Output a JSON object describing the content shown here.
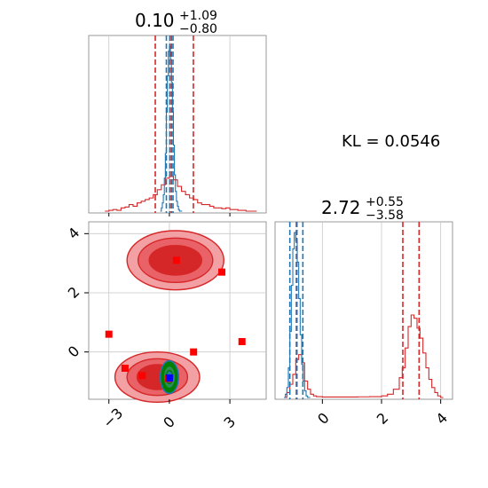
{
  "annotation": {
    "text": "KL = 0.0546"
  },
  "colors": {
    "red": "#d62728",
    "blue": "#1f77b4",
    "red_fill_light": "#f2a0a3",
    "red_fill_dark": "#d62728",
    "marker_red": "#ff0000",
    "marker_blue": "#0000ff",
    "green": "#008000",
    "grid": "#c8c8c8"
  },
  "chart_data": [
    {
      "type": "histogram",
      "panel": "top-left",
      "title": {
        "main": "0.10",
        "sup": "+1.09",
        "sub": "−0.80"
      },
      "xlim": [
        -4.0,
        4.8
      ],
      "xticks": [
        -3,
        0,
        3
      ],
      "xticklabels_shown": false,
      "grid": true,
      "vlines": [
        {
          "x": -0.7,
          "color": "red",
          "style": "dashed"
        },
        {
          "x": 0.1,
          "color": "red",
          "style": "dashed"
        },
        {
          "x": 1.19,
          "color": "red",
          "style": "dashed"
        },
        {
          "x": -0.15,
          "color": "blue",
          "style": "dashed"
        },
        {
          "x": 0.02,
          "color": "blue",
          "style": "dashed"
        },
        {
          "x": 0.18,
          "color": "blue",
          "style": "dashed"
        }
      ],
      "series": [
        {
          "color": "red",
          "x": [
            -3.2,
            -3.0,
            -2.8,
            -2.6,
            -2.4,
            -2.2,
            -2.0,
            -1.8,
            -1.6,
            -1.4,
            -1.2,
            -1.0,
            -0.8,
            -0.6,
            -0.4,
            -0.2,
            0.0,
            0.2,
            0.4,
            0.6,
            0.8,
            1.0,
            1.2,
            1.4,
            1.6,
            1.8,
            2.0,
            2.2,
            2.4,
            2.6,
            2.8,
            3.0,
            3.2,
            3.4,
            3.6,
            3.8,
            4.0,
            4.2
          ],
          "values": [
            0.0,
            0.005,
            0.01,
            0.005,
            0.02,
            0.025,
            0.04,
            0.03,
            0.05,
            0.06,
            0.07,
            0.08,
            0.1,
            0.13,
            0.16,
            0.2,
            0.21,
            0.19,
            0.15,
            0.12,
            0.1,
            0.08,
            0.07,
            0.05,
            0.04,
            0.04,
            0.03,
            0.02,
            0.02,
            0.015,
            0.02,
            0.01,
            0.01,
            0.005,
            0.005,
            0.0,
            0.0,
            0.0
          ]
        },
        {
          "color": "blue",
          "x": [
            -0.45,
            -0.4,
            -0.35,
            -0.3,
            -0.25,
            -0.2,
            -0.15,
            -0.1,
            -0.05,
            0.0,
            0.05,
            0.1,
            0.15,
            0.2,
            0.25,
            0.3,
            0.35,
            0.4,
            0.45,
            0.5
          ],
          "values": [
            0.0,
            0.02,
            0.05,
            0.1,
            0.2,
            0.35,
            0.6,
            0.82,
            0.97,
            1.0,
            0.92,
            0.78,
            0.6,
            0.4,
            0.22,
            0.12,
            0.06,
            0.03,
            0.01,
            0.0
          ]
        }
      ]
    },
    {
      "type": "histogram",
      "panel": "bottom-right",
      "title": {
        "main": "2.72",
        "sup": "+0.55",
        "sub": "−3.58"
      },
      "xlim": [
        -1.6,
        4.4
      ],
      "xticks": [
        0,
        2,
        4
      ],
      "xticklabels": [
        "0",
        "2",
        "4"
      ],
      "grid": true,
      "vlines": [
        {
          "x": -0.86,
          "color": "red",
          "style": "dashed"
        },
        {
          "x": 2.72,
          "color": "red",
          "style": "dashed"
        },
        {
          "x": 3.27,
          "color": "red",
          "style": "dashed"
        },
        {
          "x": -1.1,
          "color": "blue",
          "style": "dashed"
        },
        {
          "x": -0.88,
          "color": "blue",
          "style": "dashed"
        },
        {
          "x": -0.66,
          "color": "blue",
          "style": "dashed"
        }
      ],
      "series": [
        {
          "color": "red",
          "x": [
            -1.3,
            -1.2,
            -1.1,
            -1.0,
            -0.9,
            -0.8,
            -0.7,
            -0.6,
            -0.5,
            -0.4,
            -0.3,
            -0.2,
            0.0,
            0.4,
            0.8,
            1.2,
            1.6,
            2.0,
            2.2,
            2.4,
            2.6,
            2.7,
            2.8,
            2.9,
            3.0,
            3.1,
            3.2,
            3.3,
            3.4,
            3.5,
            3.6,
            3.7,
            3.8,
            3.9,
            4.0
          ],
          "values": [
            0.0,
            0.03,
            0.08,
            0.14,
            0.23,
            0.26,
            0.21,
            0.1,
            0.05,
            0.02,
            0.01,
            0.005,
            0.003,
            0.003,
            0.003,
            0.004,
            0.005,
            0.01,
            0.02,
            0.05,
            0.12,
            0.18,
            0.3,
            0.43,
            0.5,
            0.48,
            0.42,
            0.36,
            0.27,
            0.18,
            0.11,
            0.06,
            0.03,
            0.01,
            0.0
          ]
        },
        {
          "color": "blue",
          "x": [
            -1.3,
            -1.25,
            -1.2,
            -1.15,
            -1.1,
            -1.05,
            -1.0,
            -0.95,
            -0.9,
            -0.85,
            -0.8,
            -0.75,
            -0.7,
            -0.65,
            -0.6,
            -0.55,
            -0.5
          ],
          "values": [
            0.0,
            0.02,
            0.06,
            0.18,
            0.4,
            0.68,
            0.9,
            1.0,
            0.95,
            0.82,
            0.6,
            0.38,
            0.2,
            0.1,
            0.04,
            0.01,
            0.0
          ]
        }
      ]
    },
    {
      "type": "contour",
      "panel": "bottom-left",
      "xlim": [
        -4.0,
        4.8
      ],
      "ylim": [
        -1.6,
        4.4
      ],
      "xticks": [
        -3,
        0,
        3
      ],
      "xticklabels": [
        "−3",
        "0",
        "3"
      ],
      "yticks": [
        0,
        2,
        4
      ],
      "yticklabels": [
        "0",
        "2",
        "4"
      ],
      "grid": true,
      "red_contour_blobs": [
        {
          "cx": 0.3,
          "cy": 3.1,
          "levels_rx": [
            2.4,
            1.85,
            1.3
          ],
          "levels_ry": [
            1.0,
            0.75,
            0.5
          ]
        },
        {
          "cx": -0.6,
          "cy": -0.85,
          "levels_rx": [
            2.1,
            1.5,
            1.0
          ],
          "levels_ry": [
            0.85,
            0.62,
            0.42
          ]
        }
      ],
      "blue_green_contours": {
        "cx": 0.0,
        "cy": -0.85,
        "levels_rx": [
          0.45,
          0.3,
          0.17
        ],
        "levels_ry": [
          0.55,
          0.38,
          0.22
        ]
      },
      "red_markers": [
        {
          "x": 0.35,
          "y": 3.1
        },
        {
          "x": 2.6,
          "y": 2.7
        },
        {
          "x": -3.0,
          "y": 0.6
        },
        {
          "x": 3.6,
          "y": 0.35
        },
        {
          "x": 1.2,
          "y": 0.0
        },
        {
          "x": -2.2,
          "y": -0.55
        },
        {
          "x": -1.35,
          "y": -0.8
        },
        {
          "x": -0.05,
          "y": -0.9
        }
      ],
      "blue_marker": {
        "x": 0.0,
        "y": -0.88
      }
    }
  ]
}
